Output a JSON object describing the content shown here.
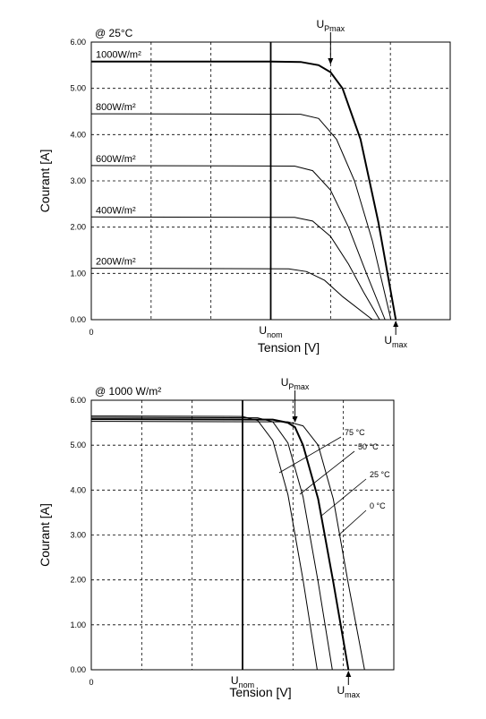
{
  "chart_data": [
    {
      "type": "line",
      "title": "@ 25°C",
      "xlabel": "Tension [V]",
      "ylabel": "Courant [A]",
      "xlim": [
        0,
        6
      ],
      "ylim": [
        0,
        6
      ],
      "xticks": [
        0
      ],
      "xgrid": [
        1,
        2,
        3,
        4,
        5
      ],
      "grid": "dashed",
      "yticks": [
        {
          "value": 0,
          "label": "0.00"
        },
        {
          "value": 1,
          "label": "1.00"
        },
        {
          "value": 2,
          "label": "2.00"
        },
        {
          "value": 3,
          "label": "3.00"
        },
        {
          "value": 4,
          "label": "4.00"
        },
        {
          "value": 5,
          "label": "5.00"
        },
        {
          "value": 6,
          "label": "6.00"
        }
      ],
      "series": [
        {
          "name": "1000W/m²",
          "color": "#000000",
          "width": 2,
          "x": [
            0,
            3,
            3.5,
            3.8,
            4.0,
            4.2,
            4.5,
            4.8,
            5.09
          ],
          "values": [
            5.58,
            5.58,
            5.57,
            5.5,
            5.35,
            5.0,
            3.9,
            2.1,
            0
          ]
        },
        {
          "name": "800W/m²",
          "color": "#000000",
          "width": 1,
          "x": [
            0,
            3.5,
            3.8,
            4.1,
            4.4,
            4.7,
            5.01
          ],
          "values": [
            4.45,
            4.44,
            4.35,
            3.9,
            3.0,
            1.7,
            0
          ]
        },
        {
          "name": "600W/m²",
          "color": "#000000",
          "width": 1,
          "x": [
            0,
            3.4,
            3.7,
            4.0,
            4.3,
            4.6,
            4.91
          ],
          "values": [
            3.33,
            3.32,
            3.22,
            2.8,
            2.0,
            1.0,
            0
          ]
        },
        {
          "name": "400W/m²",
          "color": "#000000",
          "width": 1,
          "x": [
            0,
            3.4,
            3.7,
            4.0,
            4.3,
            4.55,
            4.82
          ],
          "values": [
            2.22,
            2.21,
            2.13,
            1.8,
            1.2,
            0.6,
            0
          ]
        },
        {
          "name": "200W/m²",
          "color": "#000000",
          "width": 1,
          "x": [
            0,
            3.3,
            3.6,
            3.9,
            4.2,
            4.7
          ],
          "values": [
            1.11,
            1.1,
            1.04,
            0.85,
            0.5,
            0
          ]
        }
      ],
      "markers": [
        {
          "text": "U",
          "sub": "Pmax",
          "x": 4.0,
          "kind": "above"
        },
        {
          "text": "U",
          "sub": "nom",
          "x": 3.0,
          "kind": "axis"
        },
        {
          "text": "U",
          "sub": "max",
          "x": 5.09,
          "kind": "below"
        }
      ]
    },
    {
      "type": "line",
      "title": "@ 1000 W/m²",
      "xlabel": "Tension [V]",
      "ylabel": "Courant [A]",
      "xlim": [
        0,
        6
      ],
      "ylim": [
        0,
        6
      ],
      "xticks": [
        0
      ],
      "xgrid": [
        1,
        2,
        3,
        4,
        5
      ],
      "grid": "dashed",
      "yticks": [
        {
          "value": 0,
          "label": "0.00"
        },
        {
          "value": 1,
          "label": "1.00"
        },
        {
          "value": 2,
          "label": "2.00"
        },
        {
          "value": 3,
          "label": "3.00"
        },
        {
          "value": 4,
          "label": "4.00"
        },
        {
          "value": 5,
          "label": "5.00"
        },
        {
          "value": 6,
          "label": "6.00"
        }
      ],
      "series": [
        {
          "name": "75 °C",
          "color": "#000000",
          "width": 1,
          "x": [
            0,
            3.0,
            3.3,
            3.6,
            3.9,
            4.2,
            4.48
          ],
          "values": [
            5.65,
            5.64,
            5.55,
            5.1,
            3.9,
            2.0,
            0
          ]
        },
        {
          "name": "50 °C",
          "color": "#000000",
          "width": 1,
          "x": [
            0,
            3.3,
            3.6,
            3.9,
            4.2,
            4.5,
            4.78
          ],
          "values": [
            5.62,
            5.61,
            5.52,
            5.05,
            3.85,
            1.95,
            0
          ]
        },
        {
          "name": "25 °C",
          "color": "#000000",
          "width": 2,
          "x": [
            0,
            3.6,
            3.9,
            4.04,
            4.2,
            4.5,
            4.8,
            5.1
          ],
          "values": [
            5.58,
            5.57,
            5.5,
            5.4,
            5.0,
            3.8,
            1.95,
            0
          ]
        },
        {
          "name": "0 °C",
          "color": "#000000",
          "width": 1,
          "x": [
            0,
            3.9,
            4.2,
            4.5,
            4.8,
            5.1,
            5.42
          ],
          "values": [
            5.53,
            5.52,
            5.43,
            5.0,
            3.8,
            1.9,
            0
          ]
        }
      ],
      "markers": [
        {
          "text": "U",
          "sub": "Pmax",
          "x": 4.04,
          "kind": "above"
        },
        {
          "text": "U",
          "sub": "nom",
          "x": 3.0,
          "kind": "axis"
        },
        {
          "text": "U",
          "sub": "max",
          "x": 5.1,
          "kind": "below"
        }
      ]
    }
  ]
}
